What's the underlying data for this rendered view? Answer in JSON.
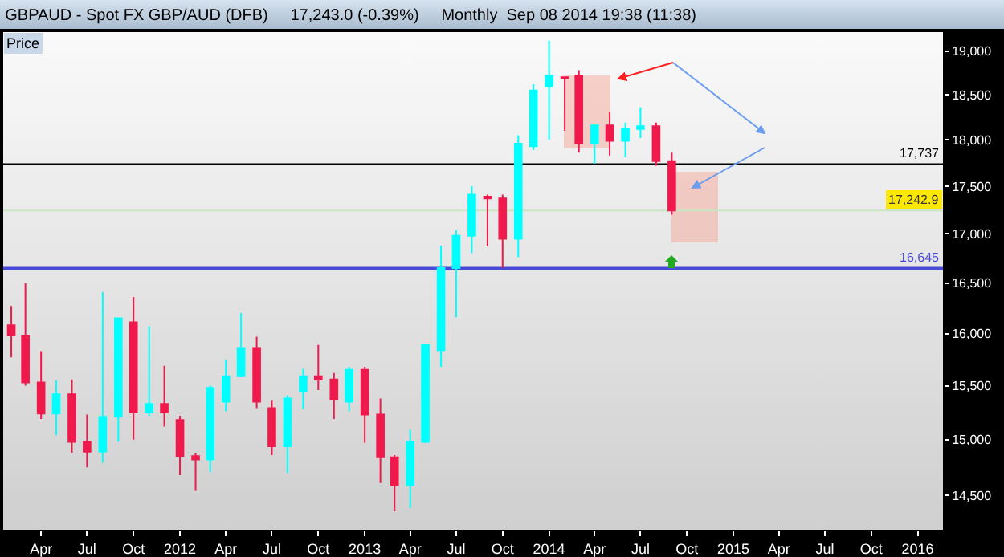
{
  "chart_data": {
    "type": "candlestick",
    "title": "GBPAUD - Spot FX GBP/AUD (DFB)     17,243.0 (-0.39%)     Monthly  Sep 08 2014 19:38 (11:38)",
    "annotations": [
      "Price"
    ],
    "x": [
      "2011-02",
      "2011-03",
      "2011-04",
      "2011-05",
      "2011-06",
      "2011-07",
      "2011-08",
      "2011-09",
      "2011-10",
      "2011-11",
      "2011-12",
      "2012-01",
      "2012-02",
      "2012-03",
      "2012-04",
      "2012-05",
      "2012-06",
      "2012-07",
      "2012-08",
      "2012-09",
      "2012-10",
      "2012-11",
      "2012-12",
      "2013-01",
      "2013-02",
      "2013-03",
      "2013-04",
      "2013-05",
      "2013-06",
      "2013-07",
      "2013-08",
      "2013-09",
      "2013-10",
      "2013-11",
      "2013-12",
      "2014-01",
      "2014-02",
      "2014-03",
      "2014-04",
      "2014-05",
      "2014-06",
      "2014-07",
      "2014-08",
      "2014-09"
    ],
    "ohlc": [
      [
        16080,
        16270,
        15770,
        15980
      ],
      [
        15980,
        16500,
        15500,
        15530
      ],
      [
        15530,
        15830,
        15190,
        15240
      ],
      [
        15240,
        15550,
        15040,
        15420
      ],
      [
        15420,
        15560,
        14880,
        14980
      ],
      [
        14980,
        15230,
        14750,
        14890
      ],
      [
        14890,
        16410,
        14790,
        15210
      ],
      [
        15210,
        16150,
        14980,
        16150
      ],
      [
        16110,
        16360,
        15000,
        15250
      ],
      [
        15250,
        16070,
        15220,
        15330
      ],
      [
        15330,
        15690,
        15120,
        15250
      ],
      [
        15180,
        15220,
        14680,
        14850
      ],
      [
        14850,
        14880,
        14540,
        14820
      ],
      [
        14820,
        15500,
        14710,
        15480
      ],
      [
        15350,
        15750,
        15260,
        15590
      ],
      [
        15590,
        16200,
        15580,
        15860
      ],
      [
        15860,
        15970,
        15290,
        15350
      ],
      [
        15290,
        15360,
        14860,
        14940
      ],
      [
        14940,
        15410,
        14700,
        15380
      ],
      [
        15450,
        15660,
        15280,
        15590
      ],
      [
        15590,
        15890,
        15460,
        15560
      ],
      [
        15560,
        15620,
        15190,
        15370
      ],
      [
        15350,
        15680,
        15260,
        15650
      ],
      [
        15650,
        15680,
        14970,
        15230
      ],
      [
        15230,
        15380,
        14610,
        14840
      ],
      [
        14840,
        14860,
        14360,
        14590
      ],
      [
        14590,
        15090,
        14390,
        14980
      ],
      [
        14980,
        15890,
        14970,
        15890
      ],
      [
        15840,
        16880,
        15680,
        16650
      ],
      [
        16650,
        17040,
        16160,
        16980
      ],
      [
        16980,
        17500,
        16800,
        17410
      ],
      [
        17390,
        17410,
        16870,
        17370
      ],
      [
        17370,
        17410,
        16650,
        16950
      ],
      [
        16950,
        18050,
        16760,
        17960
      ],
      [
        17930,
        18620,
        17890,
        18550
      ],
      [
        18600,
        19120,
        18000,
        18720
      ],
      [
        18700,
        18700,
        18100,
        18690
      ],
      [
        18720,
        18780,
        17860,
        17960
      ],
      [
        17960,
        18160,
        17740,
        18160
      ],
      [
        18160,
        18310,
        17830,
        17990
      ],
      [
        17990,
        18190,
        17810,
        18120
      ],
      [
        18120,
        18360,
        18020,
        18150
      ],
      [
        18150,
        18190,
        17720,
        17770
      ],
      [
        17770,
        17860,
        17200,
        17243
      ]
    ],
    "colors": [
      "#f0194b",
      "#f0194b",
      "#f0194b",
      "#00ffff",
      "#f0194b",
      "#f0194b",
      "#00ffff",
      "#00ffff",
      "#f0194b",
      "#00ffff",
      "#f0194b",
      "#f0194b",
      "#f0194b",
      "#00ffff",
      "#00ffff",
      "#00ffff",
      "#f0194b",
      "#f0194b",
      "#00ffff",
      "#00ffff",
      "#f0194b",
      "#f0194b",
      "#00ffff",
      "#f0194b",
      "#f0194b",
      "#f0194b",
      "#00ffff",
      "#00ffff",
      "#00ffff",
      "#00ffff",
      "#00ffff",
      "#f0194b",
      "#f0194b",
      "#00ffff",
      "#00ffff",
      "#00ffff",
      "#f0194b",
      "#f0194b",
      "#00ffff",
      "#f0194b",
      "#00ffff",
      "#00ffff",
      "#f0194b",
      "#f0194b"
    ],
    "log": true,
    "xlim": [
      "2011-01-16",
      "2016-02-20"
    ],
    "xticks": [
      {
        "value": "2011-04",
        "label": "Apr"
      },
      {
        "value": "2011-07",
        "label": "Jul"
      },
      {
        "value": "2011-10",
        "label": "Oct"
      },
      {
        "value": "2012-01",
        "label": "2012"
      },
      {
        "value": "2012-04",
        "label": "Apr"
      },
      {
        "value": "2012-07",
        "label": "Jul"
      },
      {
        "value": "2012-10",
        "label": "Oct"
      },
      {
        "value": "2013-01",
        "label": "2013"
      },
      {
        "value": "2013-04",
        "label": "Apr"
      },
      {
        "value": "2013-07",
        "label": "Jul"
      },
      {
        "value": "2013-10",
        "label": "Oct"
      },
      {
        "value": "2014-01",
        "label": "2014"
      },
      {
        "value": "2014-04",
        "label": "Apr"
      },
      {
        "value": "2014-07",
        "label": "Jul"
      },
      {
        "value": "2014-10",
        "label": "Oct"
      },
      {
        "value": "2015-01",
        "label": "2015"
      },
      {
        "value": "2015-04",
        "label": "Apr"
      },
      {
        "value": "2015-07",
        "label": "Jul"
      },
      {
        "value": "2015-10",
        "label": "Oct"
      },
      {
        "value": "2016-01",
        "label": "2016"
      }
    ],
    "ylim": [
      14200,
      19220
    ],
    "yticks": [
      {
        "value": 14500,
        "label": "14,500"
      },
      {
        "value": 15000,
        "label": "15,000"
      },
      {
        "value": 15500,
        "label": "15,500"
      },
      {
        "value": 16000,
        "label": "16,000"
      },
      {
        "value": 16500,
        "label": "16,500"
      },
      {
        "value": 17000,
        "label": "17,000"
      },
      {
        "value": 17500,
        "label": "17,500"
      },
      {
        "value": 18000,
        "label": "18,000"
      },
      {
        "value": 18500,
        "label": "18,500"
      },
      {
        "value": 19000,
        "label": "19,000"
      }
    ],
    "ref_lines": [
      {
        "axis": "y",
        "value": 17737,
        "label": "17,737",
        "color": "#000000"
      },
      {
        "axis": "y",
        "value": 17242.9,
        "label": "17,242.9",
        "color": "#c8e6c0"
      },
      {
        "axis": "y",
        "value": 16645,
        "label": "16,645",
        "color": "#4a4ad8"
      }
    ],
    "grid": false
  }
}
